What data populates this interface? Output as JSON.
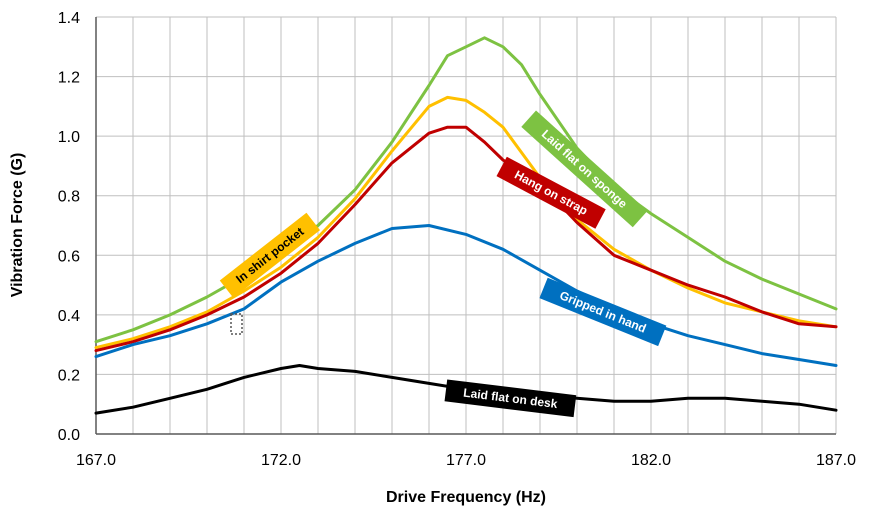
{
  "chart_data": {
    "type": "line",
    "title": "",
    "xlabel": "Drive Frequency (Hz)",
    "ylabel": "Vibration Force (G)",
    "xlim": [
      167.0,
      187.0
    ],
    "ylim": [
      0.0,
      1.4
    ],
    "xticks": [
      "167.0",
      "172.0",
      "177.0",
      "182.0",
      "187.0"
    ],
    "yticks": [
      "0.0",
      "0.2",
      "0.4",
      "0.6",
      "0.8",
      "1.0",
      "1.2",
      "1.4"
    ],
    "grid": true,
    "series": [
      {
        "name": "Laid flat on sponge",
        "color": "#7DC242",
        "x": [
          167,
          168,
          169,
          170,
          171,
          172,
          173,
          174,
          175,
          176,
          176.5,
          177,
          177.5,
          178,
          178.5,
          179,
          180,
          181,
          182,
          183,
          184,
          185,
          186,
          187
        ],
        "values": [
          0.31,
          0.35,
          0.4,
          0.46,
          0.53,
          0.61,
          0.7,
          0.82,
          0.98,
          1.17,
          1.27,
          1.3,
          1.33,
          1.3,
          1.24,
          1.14,
          0.96,
          0.83,
          0.74,
          0.66,
          0.58,
          0.52,
          0.47,
          0.42
        ]
      },
      {
        "name": "In shirt pocket",
        "color": "#FFC000",
        "x": [
          167,
          168,
          169,
          170,
          171,
          172,
          173,
          174,
          175,
          176,
          176.5,
          177,
          177.5,
          178,
          179,
          180,
          181,
          182,
          183,
          184,
          185,
          186,
          187
        ],
        "values": [
          0.29,
          0.32,
          0.36,
          0.41,
          0.48,
          0.56,
          0.66,
          0.79,
          0.95,
          1.1,
          1.13,
          1.12,
          1.08,
          1.03,
          0.86,
          0.72,
          0.62,
          0.55,
          0.49,
          0.44,
          0.41,
          0.38,
          0.36
        ]
      },
      {
        "name": "Hang on strap",
        "color": "#C00000",
        "x": [
          167,
          168,
          169,
          170,
          171,
          172,
          173,
          174,
          175,
          176,
          176.5,
          177,
          177.5,
          178,
          178.5,
          179,
          180,
          181,
          182,
          183,
          184,
          185,
          186,
          187
        ],
        "values": [
          0.28,
          0.31,
          0.35,
          0.4,
          0.46,
          0.54,
          0.64,
          0.77,
          0.91,
          1.01,
          1.03,
          1.03,
          0.98,
          0.92,
          0.88,
          0.84,
          0.71,
          0.6,
          0.55,
          0.5,
          0.46,
          0.41,
          0.37,
          0.36
        ]
      },
      {
        "name": "Gripped in hand",
        "color": "#0070C0",
        "x": [
          167,
          168,
          169,
          170,
          171,
          172,
          173,
          174,
          175,
          176,
          177,
          178,
          179,
          180,
          181,
          182,
          183,
          184,
          185,
          186,
          187
        ],
        "values": [
          0.26,
          0.3,
          0.33,
          0.37,
          0.42,
          0.51,
          0.58,
          0.64,
          0.69,
          0.7,
          0.67,
          0.62,
          0.55,
          0.48,
          0.42,
          0.37,
          0.33,
          0.3,
          0.27,
          0.25,
          0.23
        ]
      },
      {
        "name": "Laid flat on desk",
        "color": "#000000",
        "x": [
          167,
          168,
          169,
          170,
          171,
          172,
          172.5,
          173,
          174,
          175,
          176,
          177,
          178,
          179,
          180,
          181,
          182,
          183,
          184,
          185,
          186,
          187
        ],
        "values": [
          0.07,
          0.09,
          0.12,
          0.15,
          0.19,
          0.22,
          0.23,
          0.22,
          0.21,
          0.19,
          0.17,
          0.15,
          0.13,
          0.13,
          0.12,
          0.11,
          0.11,
          0.12,
          0.12,
          0.11,
          0.1,
          0.08
        ]
      }
    ]
  }
}
